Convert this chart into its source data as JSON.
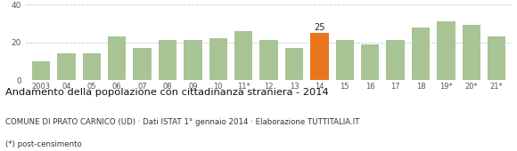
{
  "categories": [
    "2003",
    "04",
    "05",
    "06",
    "07",
    "08",
    "09",
    "10",
    "11*",
    "12",
    "13",
    "14",
    "15",
    "16",
    "17",
    "18",
    "19*",
    "20*",
    "21*"
  ],
  "values": [
    10,
    14,
    14,
    23,
    17,
    21,
    21,
    22,
    26,
    21,
    17,
    25,
    21,
    19,
    21,
    28,
    31,
    29,
    23
  ],
  "highlight_index": 11,
  "bar_color": "#a8c494",
  "highlight_color": "#e8761e",
  "highlight_label": "25",
  "title": "Andamento della popolazione con cittadinanza straniera - 2014",
  "subtitle": "COMUNE DI PRATO CARNICO (UD) · Dati ISTAT 1° gennaio 2014 · Elaborazione TUTTITALIA.IT",
  "footnote": "(*) post-censimento",
  "ylim": [
    0,
    40
  ],
  "yticks": [
    0,
    20,
    40
  ],
  "background_color": "#ffffff",
  "grid_color": "#cccccc"
}
